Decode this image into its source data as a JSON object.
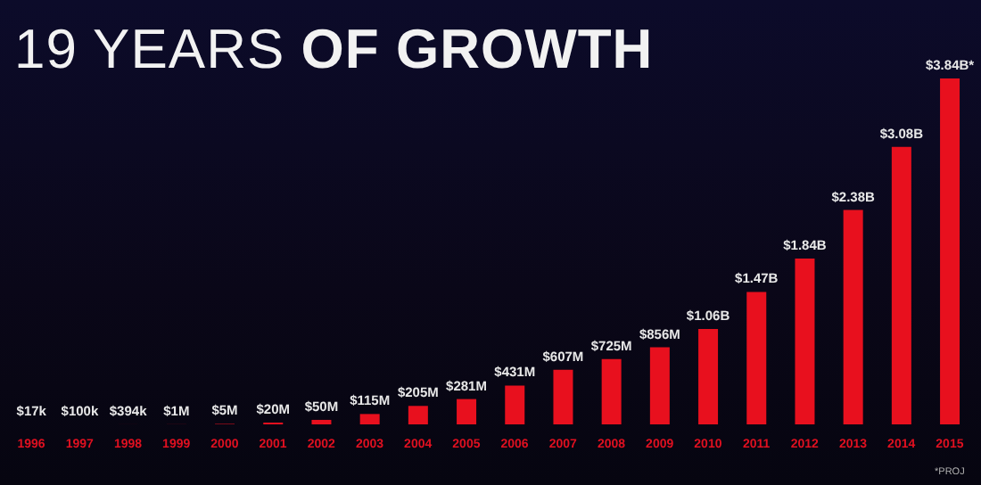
{
  "chart_data": {
    "type": "bar",
    "title": "19 YEARS OF GROWTH",
    "categories": [
      "1996",
      "1997",
      "1998",
      "1999",
      "2000",
      "2001",
      "2002",
      "2003",
      "2004",
      "2005",
      "2006",
      "2007",
      "2008",
      "2009",
      "2010",
      "2011",
      "2012",
      "2013",
      "2014",
      "2015"
    ],
    "values": [
      17000,
      100000,
      394000,
      1000000,
      5000000,
      20000000,
      50000000,
      115000000,
      205000000,
      281000000,
      431000000,
      607000000,
      725000000,
      856000000,
      1060000000,
      1470000000,
      1840000000,
      2380000000,
      3080000000,
      3840000000
    ],
    "value_labels": [
      "$17k",
      "$100k",
      "$394k",
      "$1M",
      "$5M",
      "$20M",
      "$50M",
      "$115M",
      "$205M",
      "$281M",
      "$431M",
      "$607M",
      "$725M",
      "$856M",
      "$1.06B",
      "$1.47B",
      "$1.84B",
      "$2.38B",
      "$3.08B",
      "$3.84B*"
    ],
    "color": "#e8101e",
    "annotations": [
      "*PROJ"
    ]
  }
}
